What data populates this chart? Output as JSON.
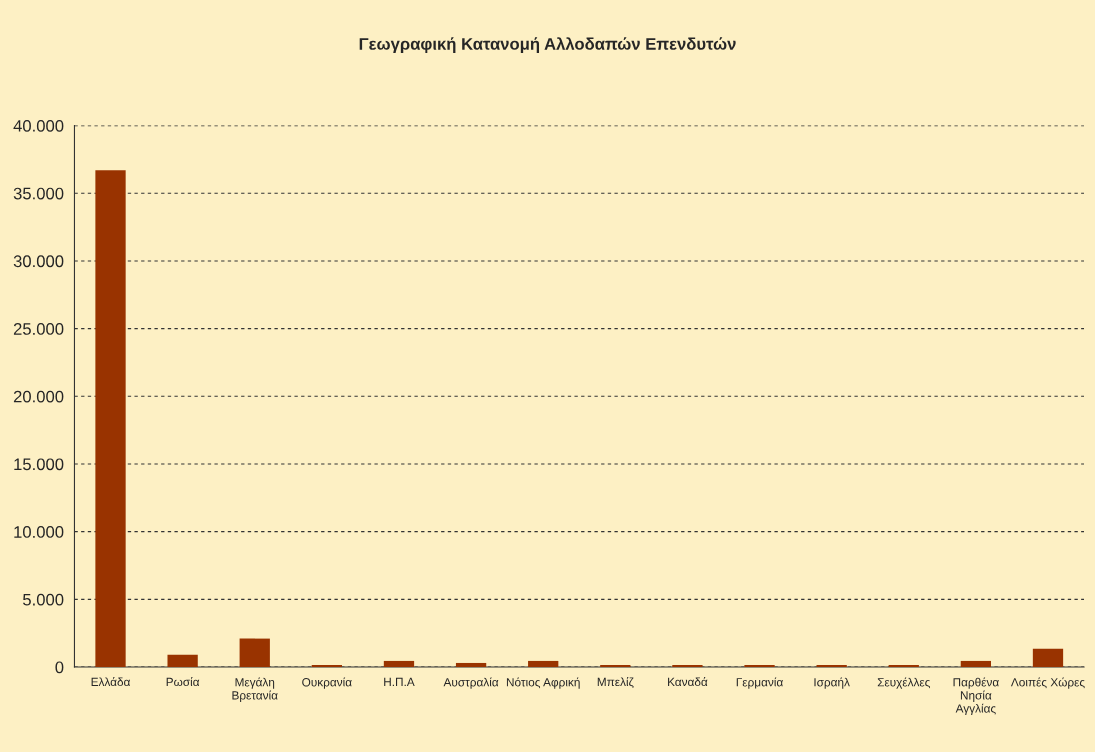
{
  "chart_data": {
    "type": "bar",
    "title": "Γεωγραφική Κατανομή Αλλοδαπών Επενδυτών",
    "categories": [
      "Ελλάδα",
      "Ρωσία",
      "Μεγάλη\nΒρετανία",
      "Ουκρανία",
      "Η.Π.Α",
      "Αυστραλία",
      "Νότιος Αφρική",
      "Μπελίζ",
      "Καναδά",
      "Γερμανία",
      "Ισραήλ",
      "Σευχέλλες",
      "Παρθένα\nΝησία\nΑγγλίας",
      "Λοιπές Χώρες"
    ],
    "values": [
      36700,
      900,
      2100,
      150,
      450,
      300,
      450,
      150,
      150,
      150,
      150,
      150,
      450,
      1350
    ],
    "color": "#993300",
    "ylim": [
      0,
      40000
    ],
    "yticks": [
      {
        "value": 0,
        "label": "0"
      },
      {
        "value": 5000,
        "label": "5.000"
      },
      {
        "value": 10000,
        "label": "10.000"
      },
      {
        "value": 15000,
        "label": "15.000"
      },
      {
        "value": 20000,
        "label": "20.000"
      },
      {
        "value": 25000,
        "label": "25.000"
      },
      {
        "value": 30000,
        "label": "30.000"
      },
      {
        "value": 35000,
        "label": "35.000"
      },
      {
        "value": 40000,
        "label": "40.000"
      }
    ],
    "grid": "y",
    "legend": false
  }
}
